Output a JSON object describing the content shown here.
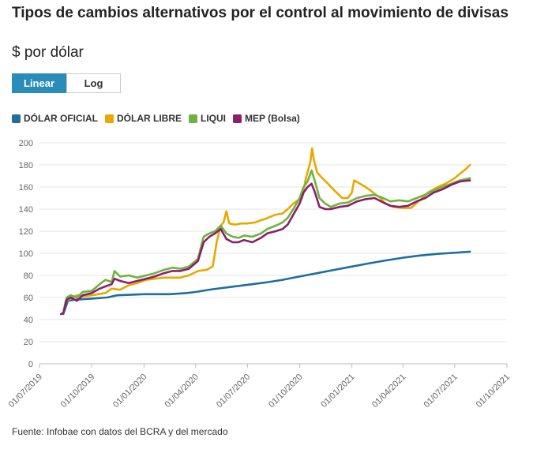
{
  "header": {
    "title": "Tipos de cambios alternativos por el control al movimiento de divisas",
    "subtitle": "$ por dólar"
  },
  "scale_toggle": {
    "options": [
      {
        "label": "Linear",
        "active": true
      },
      {
        "label": "Log",
        "active": false
      }
    ]
  },
  "footer": {
    "source": "Fuente: Infobae con datos del BCRA y del mercado"
  },
  "chart_data": {
    "type": "line",
    "title": "",
    "xlabel": "",
    "ylabel": "",
    "y_scale": "linear",
    "ylim": [
      0,
      200
    ],
    "y_ticks": [
      0,
      20,
      40,
      60,
      80,
      100,
      120,
      140,
      160,
      180,
      200
    ],
    "x_ticks": [
      "01/07/2019",
      "01/10/2019",
      "01/01/2020",
      "01/04/2020",
      "01/07/2020",
      "01/10/2020",
      "01/01/2021",
      "01/04/2021",
      "01/07/2021",
      "01/10/2021"
    ],
    "xlim": [
      "2019-07-01",
      "2021-10-01"
    ],
    "grid": "horizontal",
    "legend_position": "top-left",
    "series": [
      {
        "name": "DÓLAR OFICIAL",
        "color": "#1f6e9e",
        "points": [
          [
            "2019-08-12",
            45
          ],
          [
            "2019-08-20",
            57
          ],
          [
            "2019-09-01",
            58
          ],
          [
            "2019-10-01",
            59
          ],
          [
            "2019-10-28",
            60
          ],
          [
            "2019-11-15",
            62
          ],
          [
            "2020-01-01",
            63
          ],
          [
            "2020-02-15",
            63
          ],
          [
            "2020-03-15",
            64
          ],
          [
            "2020-04-01",
            65
          ],
          [
            "2020-05-01",
            67.5
          ],
          [
            "2020-06-01",
            69.5
          ],
          [
            "2020-07-01",
            71.5
          ],
          [
            "2020-08-01",
            73.5
          ],
          [
            "2020-09-01",
            76
          ],
          [
            "2020-10-01",
            79
          ],
          [
            "2020-11-01",
            82
          ],
          [
            "2020-12-01",
            85
          ],
          [
            "2021-01-01",
            88
          ],
          [
            "2021-02-01",
            91
          ],
          [
            "2021-03-01",
            93.5
          ],
          [
            "2021-04-01",
            96
          ],
          [
            "2021-05-01",
            98
          ],
          [
            "2021-06-01",
            99.5
          ],
          [
            "2021-07-01",
            100.5
          ],
          [
            "2021-07-28",
            101.5
          ]
        ]
      },
      {
        "name": "DÓLAR LIBRE",
        "color": "#e8a800",
        "points": [
          [
            "2019-08-08",
            45
          ],
          [
            "2019-08-12",
            46
          ],
          [
            "2019-08-16",
            57
          ],
          [
            "2019-08-25",
            59
          ],
          [
            "2019-09-05",
            62
          ],
          [
            "2019-09-15",
            61
          ],
          [
            "2019-10-01",
            62
          ],
          [
            "2019-10-25",
            64
          ],
          [
            "2019-11-05",
            68
          ],
          [
            "2019-11-20",
            67
          ],
          [
            "2019-12-05",
            71
          ],
          [
            "2019-12-20",
            73
          ],
          [
            "2020-01-05",
            76
          ],
          [
            "2020-01-20",
            77
          ],
          [
            "2020-02-05",
            78
          ],
          [
            "2020-02-20",
            78
          ],
          [
            "2020-03-05",
            78
          ],
          [
            "2020-03-20",
            80
          ],
          [
            "2020-04-05",
            84
          ],
          [
            "2020-04-20",
            85
          ],
          [
            "2020-05-01",
            88
          ],
          [
            "2020-05-08",
            110
          ],
          [
            "2020-05-15",
            125
          ],
          [
            "2020-05-20",
            128
          ],
          [
            "2020-05-25",
            138
          ],
          [
            "2020-05-30",
            127
          ],
          [
            "2020-06-10",
            126
          ],
          [
            "2020-06-20",
            127
          ],
          [
            "2020-07-01",
            127
          ],
          [
            "2020-07-15",
            128
          ],
          [
            "2020-07-25",
            130
          ],
          [
            "2020-08-01",
            131
          ],
          [
            "2020-08-10",
            133
          ],
          [
            "2020-08-20",
            135
          ],
          [
            "2020-09-01",
            136
          ],
          [
            "2020-09-10",
            140
          ],
          [
            "2020-09-20",
            145
          ],
          [
            "2020-09-28",
            148
          ],
          [
            "2020-10-05",
            150
          ],
          [
            "2020-10-12",
            168
          ],
          [
            "2020-10-20",
            183
          ],
          [
            "2020-10-23",
            195
          ],
          [
            "2020-10-26",
            185
          ],
          [
            "2020-11-01",
            173
          ],
          [
            "2020-11-10",
            168
          ],
          [
            "2020-11-20",
            163
          ],
          [
            "2020-12-01",
            157
          ],
          [
            "2020-12-15",
            150
          ],
          [
            "2020-12-25",
            150
          ],
          [
            "2021-01-01",
            155
          ],
          [
            "2021-01-05",
            166
          ],
          [
            "2021-01-12",
            164
          ],
          [
            "2021-01-25",
            160
          ],
          [
            "2021-02-05",
            156
          ],
          [
            "2021-02-20",
            150
          ],
          [
            "2021-03-01",
            145
          ],
          [
            "2021-03-15",
            142
          ],
          [
            "2021-04-01",
            141
          ],
          [
            "2021-04-15",
            141
          ],
          [
            "2021-05-01",
            148
          ],
          [
            "2021-05-15",
            155
          ],
          [
            "2021-06-01",
            160
          ],
          [
            "2021-06-15",
            163
          ],
          [
            "2021-07-01",
            168
          ],
          [
            "2021-07-10",
            172
          ],
          [
            "2021-07-20",
            176
          ],
          [
            "2021-07-28",
            180
          ]
        ]
      },
      {
        "name": "LIQUI",
        "color": "#6db33f",
        "points": [
          [
            "2019-08-08",
            45
          ],
          [
            "2019-08-12",
            46
          ],
          [
            "2019-08-18",
            60
          ],
          [
            "2019-08-25",
            62
          ],
          [
            "2019-09-05",
            60
          ],
          [
            "2019-09-15",
            65
          ],
          [
            "2019-10-01",
            66
          ],
          [
            "2019-10-15",
            72
          ],
          [
            "2019-10-25",
            76
          ],
          [
            "2019-11-05",
            74
          ],
          [
            "2019-11-10",
            84
          ],
          [
            "2019-11-20",
            79
          ],
          [
            "2019-12-05",
            80
          ],
          [
            "2019-12-20",
            78
          ],
          [
            "2020-01-05",
            80
          ],
          [
            "2020-01-20",
            82
          ],
          [
            "2020-02-05",
            85
          ],
          [
            "2020-02-20",
            87
          ],
          [
            "2020-03-05",
            86
          ],
          [
            "2020-03-20",
            88
          ],
          [
            "2020-04-05",
            95
          ],
          [
            "2020-04-15",
            115
          ],
          [
            "2020-04-25",
            118
          ],
          [
            "2020-05-05",
            120
          ],
          [
            "2020-05-15",
            125
          ],
          [
            "2020-05-25",
            118
          ],
          [
            "2020-06-05",
            115
          ],
          [
            "2020-06-15",
            114
          ],
          [
            "2020-06-25",
            116
          ],
          [
            "2020-07-10",
            115
          ],
          [
            "2020-07-25",
            118
          ],
          [
            "2020-08-05",
            122
          ],
          [
            "2020-08-20",
            125
          ],
          [
            "2020-09-01",
            128
          ],
          [
            "2020-09-10",
            132
          ],
          [
            "2020-09-20",
            140
          ],
          [
            "2020-10-01",
            150
          ],
          [
            "2020-10-08",
            160
          ],
          [
            "2020-10-15",
            165
          ],
          [
            "2020-10-22",
            175
          ],
          [
            "2020-10-28",
            165
          ],
          [
            "2020-11-05",
            150
          ],
          [
            "2020-11-15",
            145
          ],
          [
            "2020-11-25",
            142
          ],
          [
            "2020-12-10",
            145
          ],
          [
            "2020-12-25",
            146
          ],
          [
            "2021-01-10",
            150
          ],
          [
            "2021-01-25",
            152
          ],
          [
            "2021-02-10",
            153
          ],
          [
            "2021-02-25",
            150
          ],
          [
            "2021-03-10",
            147
          ],
          [
            "2021-03-25",
            148
          ],
          [
            "2021-04-10",
            147
          ],
          [
            "2021-04-25",
            150
          ],
          [
            "2021-05-10",
            153
          ],
          [
            "2021-05-25",
            157
          ],
          [
            "2021-06-10",
            160
          ],
          [
            "2021-06-25",
            163
          ],
          [
            "2021-07-10",
            166
          ],
          [
            "2021-07-28",
            168
          ]
        ]
      },
      {
        "name": "MEP (Bolsa)",
        "color": "#8b1e6b",
        "points": [
          [
            "2019-08-08",
            45
          ],
          [
            "2019-08-12",
            46
          ],
          [
            "2019-08-18",
            58
          ],
          [
            "2019-08-25",
            60
          ],
          [
            "2019-09-05",
            57
          ],
          [
            "2019-09-15",
            62
          ],
          [
            "2019-10-01",
            64
          ],
          [
            "2019-10-15",
            68
          ],
          [
            "2019-10-25",
            70
          ],
          [
            "2019-11-05",
            72
          ],
          [
            "2019-11-10",
            77
          ],
          [
            "2019-11-20",
            75
          ],
          [
            "2019-12-05",
            73
          ],
          [
            "2019-12-20",
            75
          ],
          [
            "2020-01-05",
            77
          ],
          [
            "2020-01-20",
            79
          ],
          [
            "2020-02-05",
            82
          ],
          [
            "2020-02-20",
            84
          ],
          [
            "2020-03-05",
            84
          ],
          [
            "2020-03-20",
            86
          ],
          [
            "2020-04-05",
            93
          ],
          [
            "2020-04-15",
            110
          ],
          [
            "2020-04-25",
            115
          ],
          [
            "2020-05-05",
            118
          ],
          [
            "2020-05-15",
            122
          ],
          [
            "2020-05-25",
            113
          ],
          [
            "2020-06-05",
            110
          ],
          [
            "2020-06-15",
            110
          ],
          [
            "2020-06-25",
            112
          ],
          [
            "2020-07-10",
            110
          ],
          [
            "2020-07-25",
            114
          ],
          [
            "2020-08-05",
            118
          ],
          [
            "2020-08-20",
            120
          ],
          [
            "2020-09-01",
            122
          ],
          [
            "2020-09-10",
            126
          ],
          [
            "2020-09-20",
            135
          ],
          [
            "2020-10-01",
            145
          ],
          [
            "2020-10-08",
            155
          ],
          [
            "2020-10-15",
            160
          ],
          [
            "2020-10-22",
            163
          ],
          [
            "2020-10-28",
            155
          ],
          [
            "2020-11-05",
            142
          ],
          [
            "2020-11-15",
            140
          ],
          [
            "2020-11-25",
            140
          ],
          [
            "2020-12-10",
            142
          ],
          [
            "2020-12-25",
            143
          ],
          [
            "2021-01-10",
            147
          ],
          [
            "2021-01-25",
            149
          ],
          [
            "2021-02-10",
            150
          ],
          [
            "2021-02-25",
            146
          ],
          [
            "2021-03-10",
            143
          ],
          [
            "2021-03-25",
            142
          ],
          [
            "2021-04-10",
            143
          ],
          [
            "2021-04-25",
            147
          ],
          [
            "2021-05-10",
            150
          ],
          [
            "2021-05-25",
            155
          ],
          [
            "2021-06-10",
            158
          ],
          [
            "2021-06-25",
            162
          ],
          [
            "2021-07-10",
            165
          ],
          [
            "2021-07-28",
            166
          ]
        ]
      }
    ]
  }
}
